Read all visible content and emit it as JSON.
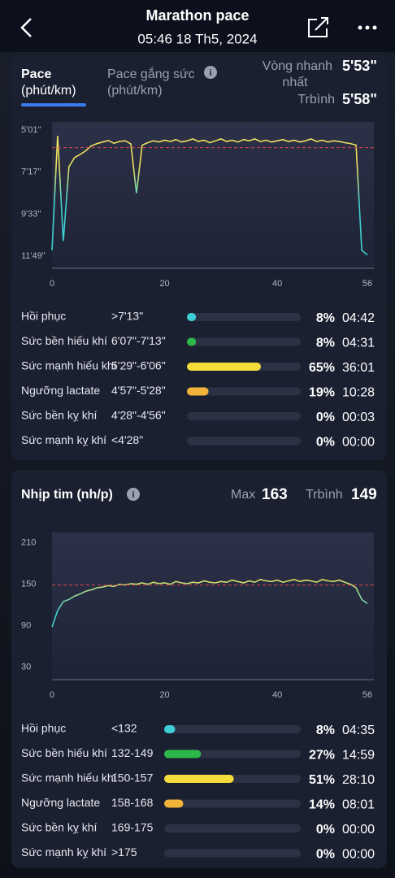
{
  "header": {
    "title": "Marathon pace",
    "subtitle": "05:46 18 Th5, 2024"
  },
  "pace_panel": {
    "tab_active": [
      "Pace",
      "(phút/km)"
    ],
    "tab_other": [
      "Pace gắng sức",
      "(phút/km)"
    ],
    "fastest_label": [
      "Vòng nhanh",
      "nhất"
    ],
    "fastest_value": "5'53\"",
    "average_label": "Trbình",
    "zones": {
      "names": [
        "Hồi phục",
        "Sức bền hiếu khí",
        "Sức mạnh hiếu khí",
        "Ngưỡng lactate",
        "Sức bền kỵ khí",
        "Sức mạnh kỵ khí"
      ],
      "ranges": [
        ">7'13\"",
        "6'07\"-7'13\"",
        "5'29\"-6'06\"",
        "4'57\"-5'28\"",
        "4'28\"-4'56\"",
        "<4'28\""
      ],
      "values": [
        8,
        8,
        65,
        19,
        0,
        0
      ],
      "value_labels": [
        "8%",
        "8%",
        "65%",
        "19%",
        "0%",
        "0%"
      ],
      "times": [
        "04:42",
        "04:31",
        "36:01",
        "10:28",
        "00:03",
        "00:00"
      ],
      "colors": [
        "#3ecfd6",
        "#2db84a",
        "#f4dc3a",
        "#f2b33a",
        "#f06a4a",
        "#6a6f80"
      ]
    }
  },
  "hr_panel": {
    "title": "Nhịp tim (nh/p)",
    "max_label": "Max",
    "max_value": 163,
    "average_label": "Trbình",
    "zones": {
      "names": [
        "Hồi phục",
        "Sức bền hiếu khí",
        "Sức mạnh hiếu khí",
        "Ngưỡng lactate",
        "Sức bền kỵ khí",
        "Sức mạnh kỵ khí"
      ],
      "ranges": [
        "<132",
        "132-149",
        "150-157",
        "158-168",
        "169-175",
        ">175"
      ],
      "values": [
        8,
        27,
        51,
        14,
        0,
        0
      ],
      "value_labels": [
        "8%",
        "27%",
        "51%",
        "14%",
        "0%",
        "0%"
      ],
      "times": [
        "04:35",
        "14:59",
        "28:10",
        "08:01",
        "00:00",
        "00:00"
      ],
      "colors": [
        "#3ecfd6",
        "#2db84a",
        "#f4dc3a",
        "#f2b33a",
        "#f06a4a",
        "#6a6f80"
      ]
    }
  },
  "chart_data": [
    {
      "type": "line",
      "x": [
        0,
        1,
        2,
        3,
        4,
        5,
        6,
        7,
        8,
        9,
        10,
        11,
        12,
        13,
        14,
        15,
        16,
        17,
        18,
        19,
        20,
        21,
        22,
        23,
        24,
        25,
        26,
        27,
        28,
        29,
        30,
        31,
        32,
        33,
        34,
        35,
        36,
        37,
        38,
        39,
        40,
        41,
        42,
        43,
        44,
        45,
        46,
        47,
        48,
        49,
        50,
        51,
        52,
        53,
        54,
        55,
        56
      ],
      "series": [
        {
          "color": "#ece05c",
          "low_color": "#3fcfd0",
          "values": [
            690,
            320,
            660,
            420,
            390,
            380,
            368,
            352,
            345,
            340,
            335,
            344,
            338,
            336,
            346,
            505,
            350,
            342,
            336,
            340,
            334,
            338,
            332,
            340,
            336,
            330,
            338,
            334,
            342,
            336,
            330,
            338,
            334,
            340,
            332,
            336,
            330,
            338,
            334,
            340,
            336,
            332,
            338,
            334,
            340,
            336,
            330,
            338,
            334,
            340,
            336,
            338,
            342,
            345,
            350,
            690,
            705
          ]
        }
      ],
      "xlim": [
        0,
        56
      ],
      "xticks": [
        0,
        20,
        40,
        56
      ],
      "ylim": [
        748,
        275
      ],
      "yticks": [
        {
          "value": 301,
          "label": "5'01\""
        },
        {
          "value": 437,
          "label": "7'17\""
        },
        {
          "value": 573,
          "label": "9'33\""
        },
        {
          "value": 709,
          "label": "11'49\""
        }
      ],
      "average": {
        "value": 358,
        "label": "5'58\""
      },
      "average_color": "#e0454a"
    },
    {
      "type": "line",
      "x": [
        0,
        1,
        2,
        3,
        4,
        5,
        6,
        7,
        8,
        9,
        10,
        11,
        12,
        13,
        14,
        15,
        16,
        17,
        18,
        19,
        20,
        21,
        22,
        23,
        24,
        25,
        26,
        27,
        28,
        29,
        30,
        31,
        32,
        33,
        34,
        35,
        36,
        37,
        38,
        39,
        40,
        41,
        42,
        43,
        44,
        45,
        46,
        47,
        48,
        49,
        50,
        51,
        52,
        53,
        54,
        55,
        56
      ],
      "series": [
        {
          "color": "#ece05c",
          "low_color": "#3fcfd0",
          "values": [
            88,
            112,
            125,
            128,
            133,
            136,
            140,
            142,
            145,
            146,
            148,
            147,
            150,
            149,
            151,
            150,
            152,
            150,
            153,
            151,
            152,
            150,
            154,
            152,
            151,
            153,
            152,
            155,
            153,
            152,
            154,
            153,
            156,
            154,
            152,
            155,
            153,
            157,
            155,
            154,
            156,
            153,
            155,
            157,
            154,
            156,
            155,
            153,
            157,
            155,
            154,
            156,
            153,
            150,
            145,
            128,
            122
          ]
        }
      ],
      "xlim": [
        0,
        56
      ],
      "xticks": [
        0,
        20,
        40,
        56
      ],
      "ylim": [
        12,
        225
      ],
      "yticks": [
        30,
        90,
        150,
        210
      ],
      "average": {
        "value": 149
      },
      "average_color": "#e0454a"
    }
  ]
}
